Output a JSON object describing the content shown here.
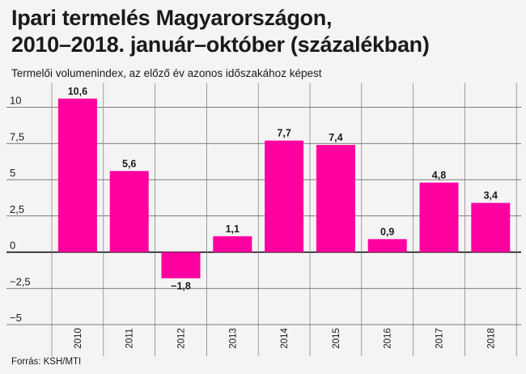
{
  "header": {
    "title_line1": "Ipari termelés Magyarországon,",
    "title_line2": "2010–2018. január–október (százalékban)",
    "subtitle": "Termelői volumenindex, az előző év azonos időszakához képest"
  },
  "footer": {
    "source": "Forrás: KSH/MTI"
  },
  "chart_data": {
    "type": "bar",
    "title": "Ipari termelés Magyarországon, 2010–2018. január–október (százalékban)",
    "subtitle": "Termelői volumenindex, az előző év azonos időszakához képest",
    "categories": [
      "2010",
      "2011",
      "2012",
      "2013",
      "2014",
      "2015",
      "2016",
      "2017",
      "2018"
    ],
    "values": [
      10.6,
      5.6,
      -1.8,
      1.1,
      7.7,
      7.4,
      0.9,
      4.8,
      3.4
    ],
    "value_labels": [
      "10,6",
      "5,6",
      "−1,8",
      "1,1",
      "7,7",
      "7,4",
      "0,9",
      "4,8",
      "3,4"
    ],
    "yticks": [
      10,
      7.5,
      5,
      2.5,
      0,
      -2.5,
      -5
    ],
    "ytick_labels": [
      "10",
      "7,5",
      "5",
      "2,5",
      "0",
      "−2,5",
      "−5"
    ],
    "ylim": [
      -5,
      10.6
    ],
    "bar_color": "#ff00a0",
    "grid": true,
    "legend": "none"
  }
}
